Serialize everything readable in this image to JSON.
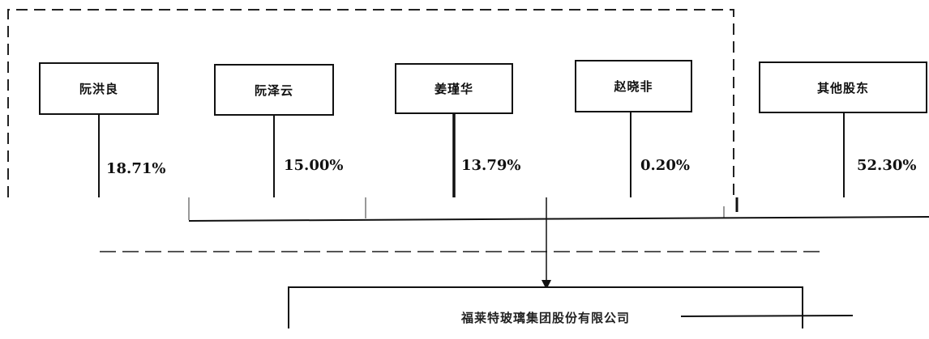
{
  "shareholders": [
    {
      "name": "阮洪良",
      "percent": "18.71%"
    },
    {
      "name": "阮泽云",
      "percent": "15.00%"
    },
    {
      "name": "姜瑾华",
      "percent": "13.79%"
    },
    {
      "name": "赵晓非",
      "percent": "0.20%"
    },
    {
      "name": "其他股东",
      "percent": "52.30%"
    }
  ],
  "company": {
    "name": "福莱特玻璃集团股份有限公司"
  }
}
